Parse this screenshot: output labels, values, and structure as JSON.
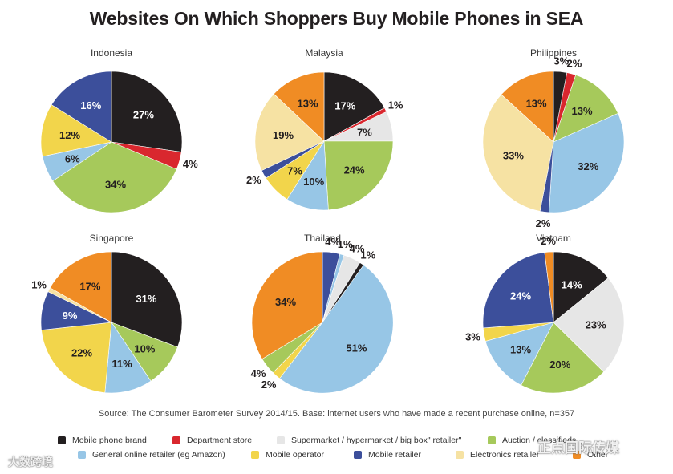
{
  "title": "Websites On Which Shoppers Buy Mobile Phones in SEA",
  "source": "Source: The Consumer Barometer Survey 2014/15. Base: internet users who have made a recent purchase online, n=357",
  "colors": {
    "mobile_phone_brand": "#231f20",
    "department_store": "#d9272e",
    "supermarket": "#e6e6e6",
    "auction": "#a6c95b",
    "general_online_retailer": "#97c6e6",
    "mobile_operator": "#f2d54b",
    "mobile_retailer": "#3c4f9b",
    "electronics_retailer": "#f6e2a3",
    "other": "#f08c24"
  },
  "legend": [
    {
      "key": "mobile_phone_brand",
      "label": "Mobile phone brand"
    },
    {
      "key": "department_store",
      "label": "Department store"
    },
    {
      "key": "supermarket",
      "label": "Supermarket / hypermarket / big box\" retailer\""
    },
    {
      "key": "auction",
      "label": "Auction / classifieds"
    },
    {
      "key": "general_online_retailer",
      "label": "General online retailer (eg Amazon)"
    },
    {
      "key": "mobile_operator",
      "label": "Mobile operator"
    },
    {
      "key": "mobile_retailer",
      "label": "Mobile retailer"
    },
    {
      "key": "electronics_retailer",
      "label": "Electronics retailer"
    },
    {
      "key": "other",
      "label": "Other"
    }
  ],
  "watermarks": {
    "top": "正点国际传媒",
    "bottom": "大数跨境"
  },
  "chart_data": [
    {
      "type": "pie",
      "title": "Indonesia",
      "slices": [
        {
          "category": "mobile_phone_brand",
          "value": 27
        },
        {
          "category": "department_store",
          "value": 4
        },
        {
          "category": "auction",
          "value": 34
        },
        {
          "category": "general_online_retailer",
          "value": 6
        },
        {
          "category": "mobile_operator",
          "value": 12
        },
        {
          "category": "mobile_retailer",
          "value": 16
        }
      ]
    },
    {
      "type": "pie",
      "title": "Malaysia",
      "slices": [
        {
          "category": "mobile_phone_brand",
          "value": 17
        },
        {
          "category": "department_store",
          "value": 1
        },
        {
          "category": "supermarket",
          "value": 7
        },
        {
          "category": "auction",
          "value": 24
        },
        {
          "category": "general_online_retailer",
          "value": 10
        },
        {
          "category": "mobile_operator",
          "value": 7
        },
        {
          "category": "mobile_retailer",
          "value": 2
        },
        {
          "category": "electronics_retailer",
          "value": 19
        },
        {
          "category": "other",
          "value": 13
        }
      ]
    },
    {
      "type": "pie",
      "title": "Philippines",
      "slices": [
        {
          "category": "mobile_phone_brand",
          "value": 3
        },
        {
          "category": "department_store",
          "value": 2
        },
        {
          "category": "auction",
          "value": 13
        },
        {
          "category": "general_online_retailer",
          "value": 32
        },
        {
          "category": "mobile_retailer",
          "value": 2
        },
        {
          "category": "electronics_retailer",
          "value": 33
        },
        {
          "category": "other",
          "value": 13
        }
      ]
    },
    {
      "type": "pie",
      "title": "Singapore",
      "slices": [
        {
          "category": "mobile_phone_brand",
          "value": 31
        },
        {
          "category": "auction",
          "value": 10
        },
        {
          "category": "general_online_retailer",
          "value": 11
        },
        {
          "category": "mobile_operator",
          "value": 22
        },
        {
          "category": "mobile_retailer",
          "value": 9
        },
        {
          "category": "electronics_retailer",
          "value": 1
        },
        {
          "category": "other",
          "value": 17
        }
      ]
    },
    {
      "type": "pie",
      "title": "Thailand",
      "slices": [
        {
          "category": "mobile_retailer",
          "value": 4
        },
        {
          "category": "general_online_retailer",
          "value": 1
        },
        {
          "category": "supermarket",
          "value": 4
        },
        {
          "category": "mobile_phone_brand",
          "value": 1
        },
        {
          "category": "general_online_retailer",
          "value": 51
        },
        {
          "category": "mobile_operator",
          "value": 2
        },
        {
          "category": "auction",
          "value": 4
        },
        {
          "category": "other",
          "value": 34
        }
      ]
    },
    {
      "type": "pie",
      "title": "Vietnam",
      "slices": [
        {
          "category": "mobile_phone_brand",
          "value": 14
        },
        {
          "category": "supermarket",
          "value": 23
        },
        {
          "category": "auction",
          "value": 20
        },
        {
          "category": "general_online_retailer",
          "value": 13
        },
        {
          "category": "mobile_operator",
          "value": 3
        },
        {
          "category": "mobile_retailer",
          "value": 24
        },
        {
          "category": "other",
          "value": 2
        }
      ]
    }
  ]
}
